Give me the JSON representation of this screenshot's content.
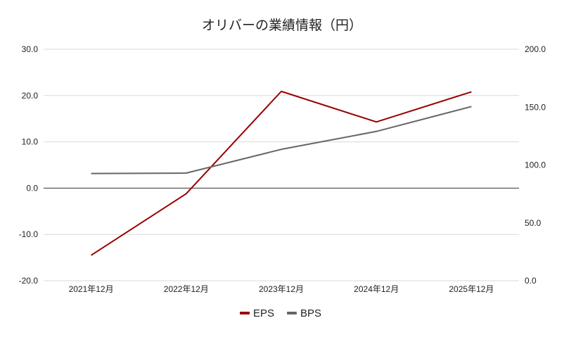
{
  "chart_data": {
    "type": "line",
    "title": "オリバーの業績情報（円）",
    "categories": [
      "2021年12月",
      "2022年12月",
      "2023年12月",
      "2024年12月",
      "2025年12月"
    ],
    "y_left": {
      "ylim": [
        -20,
        30
      ],
      "ticks": [
        "30.0",
        "20.0",
        "10.0",
        "0.0",
        "-10.0",
        "-20.0"
      ],
      "tick_values": [
        30,
        20,
        10,
        0,
        -10,
        -20
      ]
    },
    "y_right": {
      "ylim": [
        0,
        200
      ],
      "ticks": [
        "200.0",
        "150.0",
        "100.0",
        "50.0",
        "0.0"
      ],
      "tick_values": [
        200,
        150,
        100,
        50,
        0
      ]
    },
    "series": [
      {
        "name": "EPS",
        "axis": "left",
        "color": "#990000",
        "values": [
          -14.5,
          -1.2,
          20.9,
          14.3,
          20.8
        ]
      },
      {
        "name": "BPS",
        "axis": "right",
        "color": "#666666",
        "values": [
          92.6,
          93.0,
          113.5,
          129.0,
          150.5
        ]
      }
    ],
    "grid": true,
    "legend": "bottom"
  }
}
